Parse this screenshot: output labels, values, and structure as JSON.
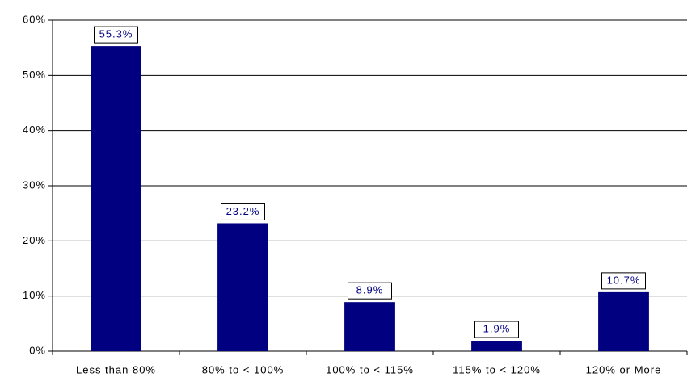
{
  "chart_data": {
    "type": "bar",
    "categories": [
      "Less than 80%",
      "80% to < 100%",
      "100% to < 115%",
      "115% to < 120%",
      "120% or More"
    ],
    "values": [
      55.3,
      23.2,
      8.9,
      1.9,
      10.7
    ],
    "value_labels": [
      "55.3%",
      "23.2%",
      "8.9%",
      "1.9%",
      "10.7%"
    ],
    "color": "#000080",
    "ylim": [
      0,
      60
    ],
    "yticks": [
      {
        "value": 0,
        "label": "0%"
      },
      {
        "value": 10,
        "label": "10%"
      },
      {
        "value": 20,
        "label": "20%"
      },
      {
        "value": 30,
        "label": "30%"
      },
      {
        "value": 40,
        "label": "40%"
      },
      {
        "value": 50,
        "label": "50%"
      },
      {
        "value": 60,
        "label": "60%"
      }
    ],
    "grid": true
  }
}
